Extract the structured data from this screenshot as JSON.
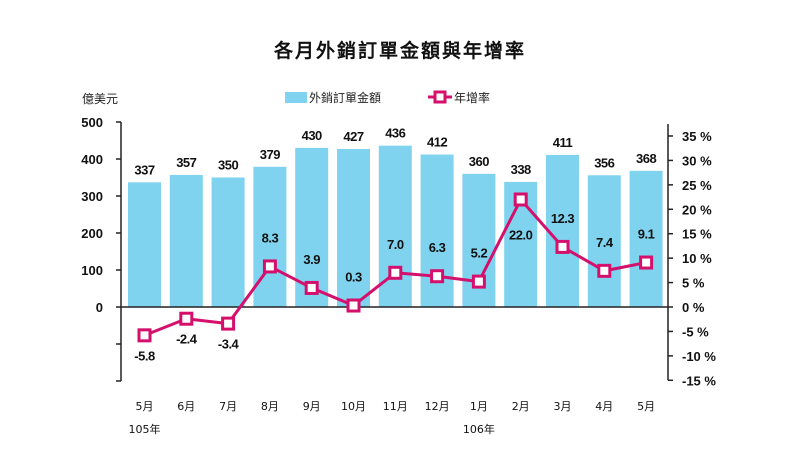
{
  "chart_data": {
    "type": "bar",
    "title": "各月外銷訂單金額與年增率",
    "ylabel_left": "億美元",
    "categories": [
      "5月",
      "6月",
      "7月",
      "8月",
      "9月",
      "10月",
      "11月",
      "12月",
      "1月",
      "2月",
      "3月",
      "4月",
      "5月"
    ],
    "year_labels": [
      {
        "label": "105年",
        "category_index": 0
      },
      {
        "label": "106年",
        "category_index": 8
      }
    ],
    "series": [
      {
        "name": "外銷訂單金額",
        "type": "bar",
        "axis": "left",
        "color": "#7fd3ef",
        "values": [
          337,
          357,
          350,
          379,
          430,
          427,
          436,
          412,
          360,
          338,
          411,
          356,
          368
        ],
        "labels": [
          "337",
          "357",
          "350",
          "379",
          "430",
          "427",
          "436",
          "412",
          "360",
          "338",
          "411",
          "356",
          "368"
        ]
      },
      {
        "name": "年增率",
        "type": "line",
        "axis": "right",
        "color": "#d4106c",
        "values": [
          -5.8,
          -2.4,
          -3.4,
          8.3,
          3.9,
          0.3,
          7.0,
          6.3,
          5.2,
          22.0,
          12.3,
          7.4,
          9.1
        ],
        "labels": [
          "-5.8",
          "-2.4",
          "-3.4",
          "8.3",
          "3.9",
          "0.3",
          "7.0",
          "6.3",
          "5.2",
          "22.0",
          "12.3",
          "7.4",
          "9.1"
        ]
      }
    ],
    "left_axis": {
      "ylim": [
        -200,
        500
      ],
      "ticks": [
        500,
        400,
        300,
        200,
        100,
        0,
        -100,
        -200
      ],
      "tick_labels": [
        "500",
        "400",
        "300",
        "200",
        "100",
        "0",
        "",
        ""
      ]
    },
    "right_axis": {
      "ylim": [
        -15,
        35
      ],
      "ticks": [
        35,
        30,
        25,
        20,
        15,
        10,
        5,
        0,
        -5,
        -10,
        -15
      ],
      "tick_labels": [
        "35 %",
        "30 %",
        "25 %",
        "20 %",
        "15 %",
        "10 %",
        "5 %",
        "0 %",
        "-5 %",
        "-10 %",
        "-15 %"
      ]
    },
    "legend": {
      "position": "top-center",
      "items": [
        "外銷訂單金額",
        "年增率"
      ]
    },
    "grid": false
  }
}
